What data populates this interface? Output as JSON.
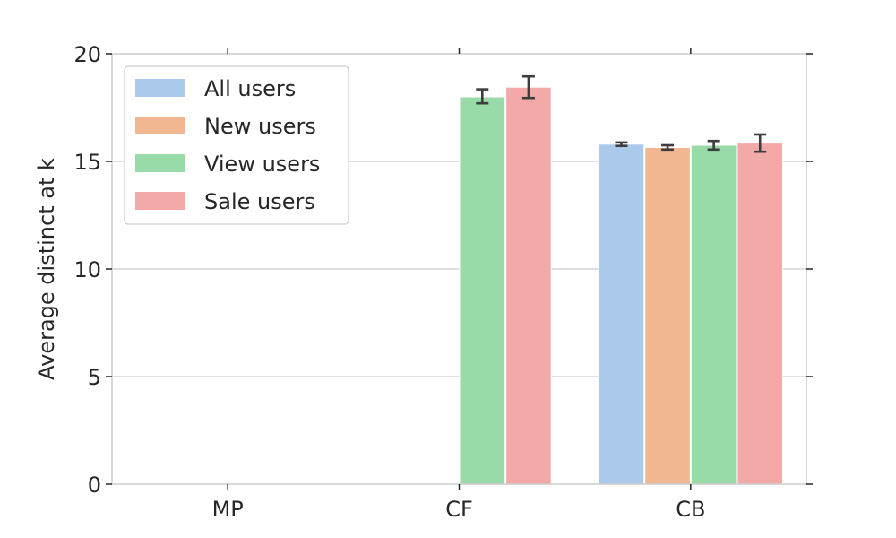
{
  "chart_data": {
    "type": "bar",
    "categories": [
      "MP",
      "CF",
      "CB"
    ],
    "series": [
      {
        "name": "All users",
        "color": "#abc9eb",
        "values": [
          null,
          null,
          15.8
        ],
        "errors": [
          null,
          null,
          [
            15.72,
            15.88
          ]
        ]
      },
      {
        "name": "New users",
        "color": "#f0b790",
        "values": [
          null,
          null,
          15.65
        ],
        "errors": [
          null,
          null,
          [
            15.55,
            15.75
          ]
        ]
      },
      {
        "name": "View users",
        "color": "#98dba8",
        "values": [
          null,
          18.0,
          15.75
        ],
        "errors": [
          null,
          [
            17.7,
            18.35
          ],
          [
            15.55,
            15.95
          ]
        ]
      },
      {
        "name": "Sale users",
        "color": "#f2a9a8",
        "values": [
          null,
          18.45,
          15.85
        ],
        "errors": [
          null,
          [
            17.95,
            18.95
          ],
          [
            15.45,
            16.25
          ]
        ]
      }
    ],
    "title": "",
    "xlabel": "",
    "ylabel": "Average distinct at k",
    "ylim": [
      0,
      20
    ],
    "yticks": [
      "0",
      "5",
      "10",
      "15",
      "20"
    ],
    "grid": "horizontal",
    "legend_position": "top-left"
  }
}
